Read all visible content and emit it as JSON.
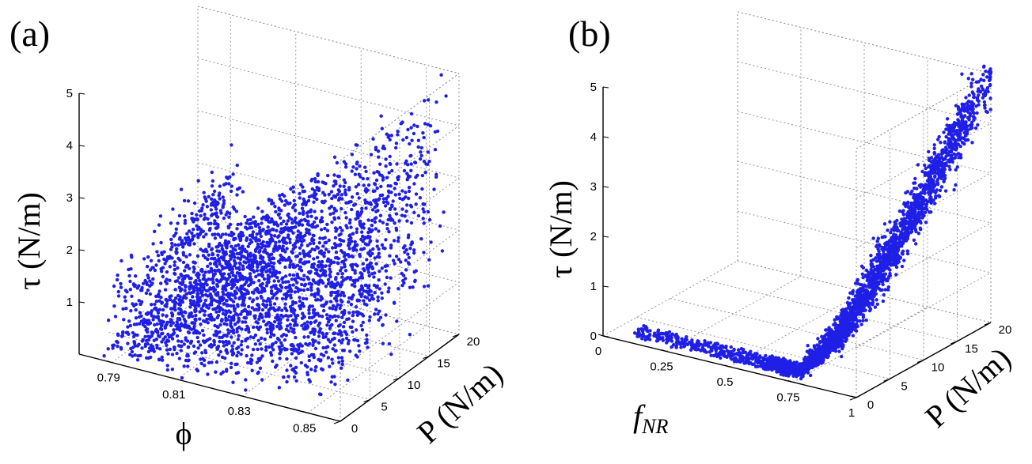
{
  "chart_data": [
    {
      "type": "scatter",
      "panel_label": "(a)",
      "view": "3d",
      "marker_color": "#1f1fe6",
      "grid": true,
      "x_axis": {
        "title": "ϕ",
        "ticks": [
          "0.79",
          "0.81",
          "0.83",
          "0.85"
        ],
        "tick_values": [
          0.79,
          0.81,
          0.83,
          0.85
        ],
        "range": [
          0.78,
          0.86
        ]
      },
      "y_axis": {
        "title": "P (N/m)",
        "ticks": [
          "0",
          "5",
          "10",
          "15",
          "20"
        ],
        "tick_values": [
          0,
          5,
          10,
          15,
          20
        ],
        "range": [
          0,
          20
        ]
      },
      "z_axis": {
        "title": "τ (N/m)",
        "ticks": [
          "1",
          "2",
          "3",
          "4",
          "5"
        ],
        "tick_values": [
          1,
          2,
          3,
          4,
          5
        ],
        "range": [
          0,
          5
        ]
      },
      "point_count": 3000,
      "trend_summary": [
        {
          "x": 0.79,
          "y_range": [
            0,
            20
          ],
          "z_range": [
            0,
            2.0
          ]
        },
        {
          "x": 0.81,
          "y_range": [
            0,
            20
          ],
          "z_range": [
            0,
            3.3
          ]
        },
        {
          "x": 0.83,
          "y_range": [
            0,
            20
          ],
          "z_range": [
            0,
            4.3
          ]
        },
        {
          "x": 0.85,
          "y_range": [
            0,
            20
          ],
          "z_range": [
            0,
            5.0
          ]
        }
      ]
    },
    {
      "type": "scatter",
      "panel_label": "(b)",
      "view": "3d",
      "marker_color": "#1f1fe6",
      "grid": true,
      "x_axis": {
        "title": "f",
        "title_subscript": "NR",
        "ticks": [
          "0",
          "0.25",
          "0.5",
          "0.75",
          "1"
        ],
        "tick_values": [
          0,
          0.25,
          0.5,
          0.75,
          1
        ],
        "range": [
          0,
          1
        ]
      },
      "y_axis": {
        "title": "P (N/m)",
        "ticks": [
          "0",
          "5",
          "10",
          "15",
          "20"
        ],
        "tick_values": [
          0,
          5,
          10,
          15,
          20
        ],
        "range": [
          0,
          20
        ]
      },
      "z_axis": {
        "title": "τ (N/m)",
        "ticks": [
          "0",
          "1",
          "2",
          "3",
          "4",
          "5"
        ],
        "tick_values": [
          0,
          1,
          2,
          3,
          4,
          5
        ],
        "range": [
          0,
          5
        ]
      },
      "point_count": 3000,
      "trend_summary": [
        {
          "x": 0.0,
          "z": 0.1
        },
        {
          "x": 0.25,
          "z": 0.1
        },
        {
          "x": 0.5,
          "z": 0.1
        },
        {
          "x": 0.75,
          "z": 0.5
        },
        {
          "x": 0.9,
          "z": 2.0
        },
        {
          "x": 1.0,
          "z": 4.5
        }
      ]
    }
  ]
}
